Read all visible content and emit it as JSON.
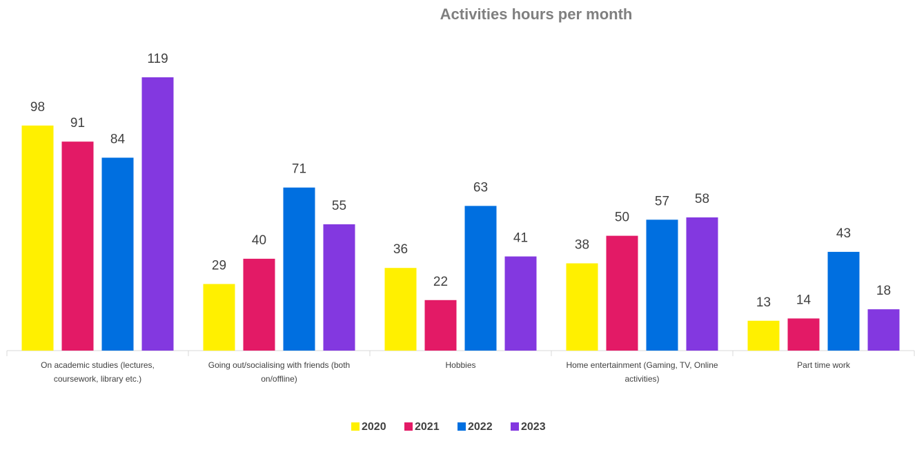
{
  "chart_data": {
    "type": "bar",
    "title": "Activities hours per month",
    "categories": [
      "On academic studies (lectures, coursework, library etc.)",
      "Going out/socialising with friends (both on/offline)",
      "Hobbies",
      "Home entertainment (Gaming, TV, Online activities)",
      "Part time work"
    ],
    "series": [
      {
        "name": "2020",
        "color": "#fff000",
        "values": [
          98,
          29,
          36,
          38,
          13
        ]
      },
      {
        "name": "2021",
        "color": "#e31a66",
        "values": [
          91,
          40,
          22,
          50,
          14
        ]
      },
      {
        "name": "2022",
        "color": "#006fe0",
        "values": [
          84,
          71,
          63,
          57,
          43
        ]
      },
      {
        "name": "2023",
        "color": "#8338e0",
        "values": [
          119,
          55,
          41,
          58,
          18
        ]
      }
    ],
    "legend": "bottom"
  }
}
